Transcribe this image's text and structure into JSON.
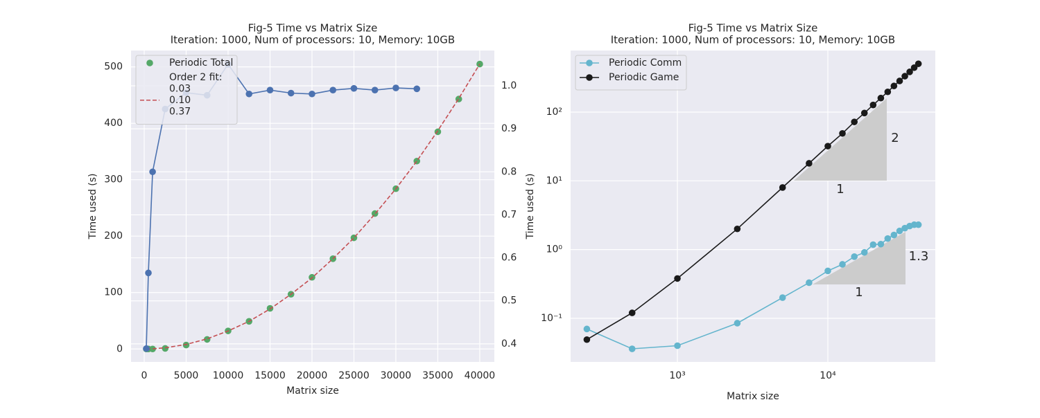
{
  "chart_data": [
    {
      "type": "line",
      "title": "Fig-5 Time vs Matrix Size",
      "subtitle": "Iteration: 1000, Num of processors: 10, Memory: 10GB",
      "xlabel": "Matrix size",
      "ylabel": "Time used (s)",
      "xlim": [
        -1570,
        41740
      ],
      "xticks": [
        0,
        5000,
        10000,
        15000,
        20000,
        25000,
        30000,
        35000,
        40000
      ],
      "ylim": [
        -23,
        529
      ],
      "yticks": [
        0,
        100,
        200,
        300,
        400,
        500
      ],
      "y2lim": [
        0.358,
        1.082
      ],
      "y2ticks": [
        0.4,
        0.5,
        0.6,
        0.7,
        0.8,
        0.9,
        {
          "value": 1.0,
          "label": "1.0"
        }
      ],
      "grid": true,
      "legend": "upper left",
      "series": [
        {
          "name": "Periodic Total",
          "color": "#55a868",
          "style": "markers",
          "x": [
            250,
            500,
            1000,
            2500,
            5000,
            7500,
            10000,
            12500,
            15000,
            17500,
            20000,
            22500,
            25000,
            27500,
            30000,
            32500,
            35000,
            37500,
            40000
          ],
          "values": [
            0,
            0,
            0,
            1,
            7,
            17,
            32,
            49,
            72,
            97,
            127,
            160,
            197,
            240,
            284,
            333,
            385,
            443,
            505
          ]
        },
        {
          "name": "Order 2 fit:",
          "name_lines": [
            "0.03",
            "0.10",
            "0.37"
          ],
          "color": "#c44e52",
          "style": "dashed",
          "x": [
            250,
            500,
            1000,
            2500,
            5000,
            7500,
            10000,
            12500,
            15000,
            17500,
            20000,
            22500,
            25000,
            27500,
            30000,
            32500,
            35000,
            37500,
            40000
          ],
          "values": [
            0,
            0.1,
            0.3,
            2,
            8,
            18,
            32,
            49,
            71,
            97,
            126,
            160,
            197,
            239,
            284,
            333,
            387,
            444,
            505
          ]
        },
        {
          "color": "#4c72b0",
          "style": "line-markers",
          "axis": "y2",
          "x": [
            250,
            500,
            1000,
            2500,
            5000,
            7500,
            10000,
            12500,
            15000,
            17500,
            20000,
            22500,
            25000,
            27500,
            30000,
            32500
          ],
          "values": [
            0.389,
            0.565,
            0.8,
            0.946,
            0.984,
            0.978,
            1.05,
            0.981,
            0.99,
            0.983,
            0.981,
            0.99,
            0.994,
            0.99,
            0.995,
            0.993
          ]
        }
      ]
    },
    {
      "type": "line",
      "title": "Fig-5 Time vs Matrix Size",
      "subtitle": "Iteration: 1000, Num of processors: 10, Memory: 10GB",
      "xlabel": "Matrix size",
      "ylabel": "Time used (s)",
      "xlog": true,
      "ylog": true,
      "xlim": [
        195,
        51800
      ],
      "xticks": [
        {
          "value": 1000,
          "label": "10³"
        },
        {
          "value": 10000,
          "label": "10⁴"
        }
      ],
      "ylim": [
        0.0232,
        787
      ],
      "yticks": [
        {
          "value": 0.1,
          "label": "10⁻¹"
        },
        {
          "value": 1,
          "label": "10⁰"
        },
        {
          "value": 10,
          "label": "10¹"
        },
        {
          "value": 100,
          "label": "10²"
        }
      ],
      "grid": true,
      "legend": "upper left",
      "series": [
        {
          "name": "Periodic Comm",
          "color": "#64b5cd",
          "style": "line-markers",
          "x": [
            250,
            500,
            1000,
            2500,
            5000,
            7500,
            10000,
            12500,
            15000,
            17500,
            20000,
            22500,
            25000,
            27500,
            30000,
            32500,
            35000,
            37500,
            40000
          ],
          "values": [
            0.07,
            0.036,
            0.04,
            0.085,
            0.2,
            0.33,
            0.49,
            0.61,
            0.79,
            0.91,
            1.18,
            1.2,
            1.45,
            1.63,
            1.87,
            2.05,
            2.2,
            2.3,
            2.3
          ]
        },
        {
          "name": "Periodic Game",
          "color": "#1a1a1a",
          "style": "line-markers",
          "x": [
            250,
            500,
            1000,
            2500,
            5000,
            7500,
            10000,
            12500,
            15000,
            17500,
            20000,
            22500,
            25000,
            27500,
            30000,
            32500,
            35000,
            37500,
            40000
          ],
          "values": [
            0.049,
            0.12,
            0.38,
            2.0,
            8.0,
            18,
            32,
            49,
            72,
            97,
            127,
            160,
            197,
            240,
            284,
            333,
            385,
            443,
            505
          ]
        }
      ],
      "slope_triangles": [
        {
          "rise": 2,
          "run": 1
        },
        {
          "rise": 1.3,
          "run": 1
        }
      ]
    }
  ]
}
